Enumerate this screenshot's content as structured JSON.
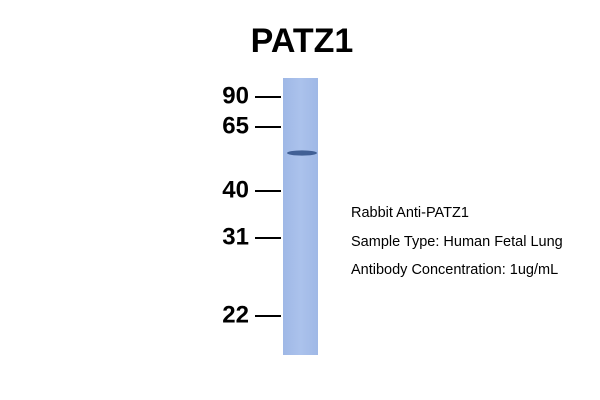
{
  "title": "PATZ1",
  "markers": [
    90,
    65,
    40,
    31,
    22
  ],
  "info": [
    "Rabbit Anti-PATZ1",
    "Sample Type: Human Fetal Lung",
    "Antibody Concentration: 1ug/mL"
  ]
}
